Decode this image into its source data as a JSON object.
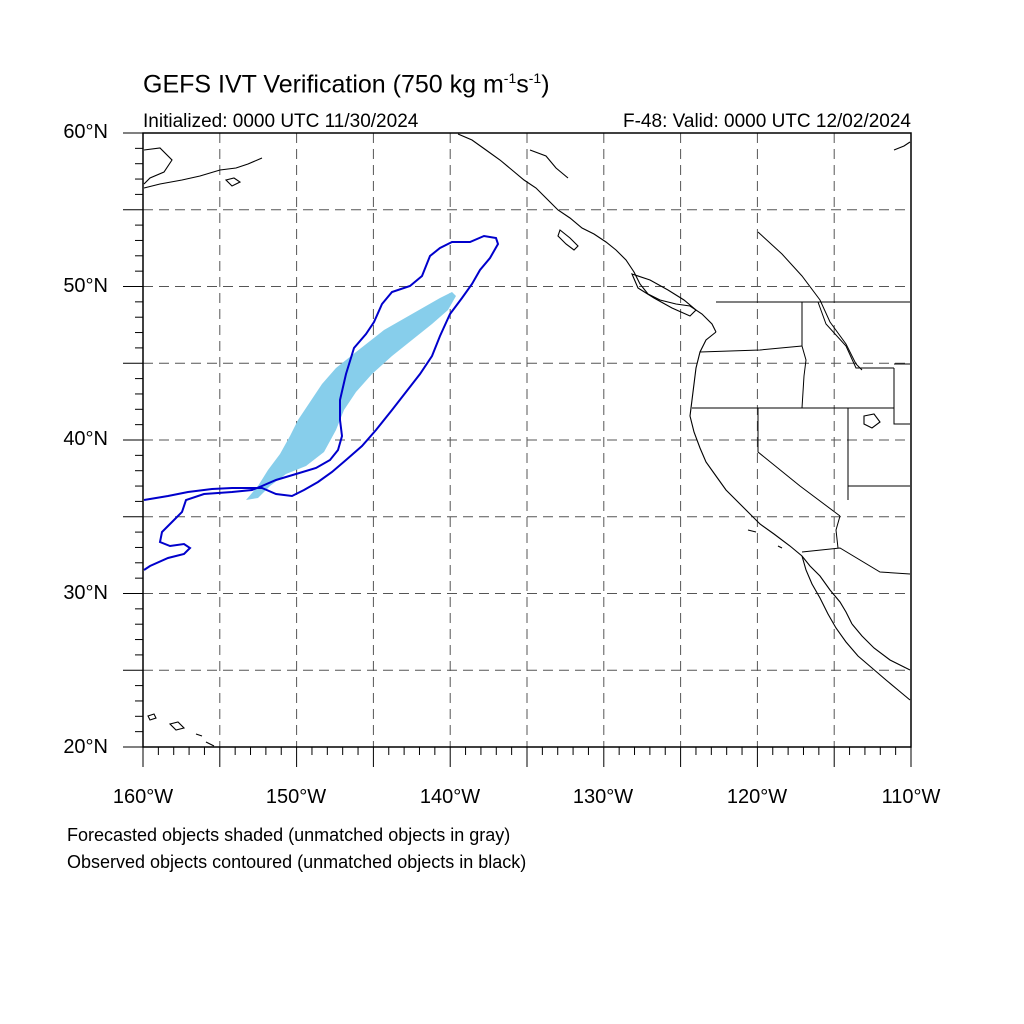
{
  "title": {
    "main": "GEFS IVT Verification (750 kg m",
    "exp1": "-1",
    "unit_s": "s",
    "exp2": "-1",
    "close": ")"
  },
  "subtitle_left": "Initialized: 0000 UTC 11/30/2024",
  "subtitle_right": "F-48: Valid: 0000 UTC 12/02/2024",
  "lat_labels": [
    {
      "text": "60°N",
      "value": 60
    },
    {
      "text": "50°N",
      "value": 50
    },
    {
      "text": "40°N",
      "value": 40
    },
    {
      "text": "30°N",
      "value": 30
    },
    {
      "text": "20°N",
      "value": 20
    }
  ],
  "lon_labels": [
    {
      "text": "160°W",
      "value": -160
    },
    {
      "text": "150°W",
      "value": -150
    },
    {
      "text": "140°W",
      "value": -140
    },
    {
      "text": "130°W",
      "value": -130
    },
    {
      "text": "120°W",
      "value": -120
    },
    {
      "text": "110°W",
      "value": -110
    }
  ],
  "footnotes": [
    "Forecasted objects shaded (unmatched objects in gray)",
    "Observed objects contoured (unmatched objects in black)"
  ],
  "map": {
    "lon_range": [
      -160,
      -110
    ],
    "lat_range": [
      20,
      60
    ],
    "grid_spacing_deg": 5,
    "grid_style": "dashed"
  },
  "colors": {
    "forecast_fill": "#87ceeb",
    "observed_contour": "#0000cc",
    "coastline": "#000000",
    "grid": "#555555"
  }
}
